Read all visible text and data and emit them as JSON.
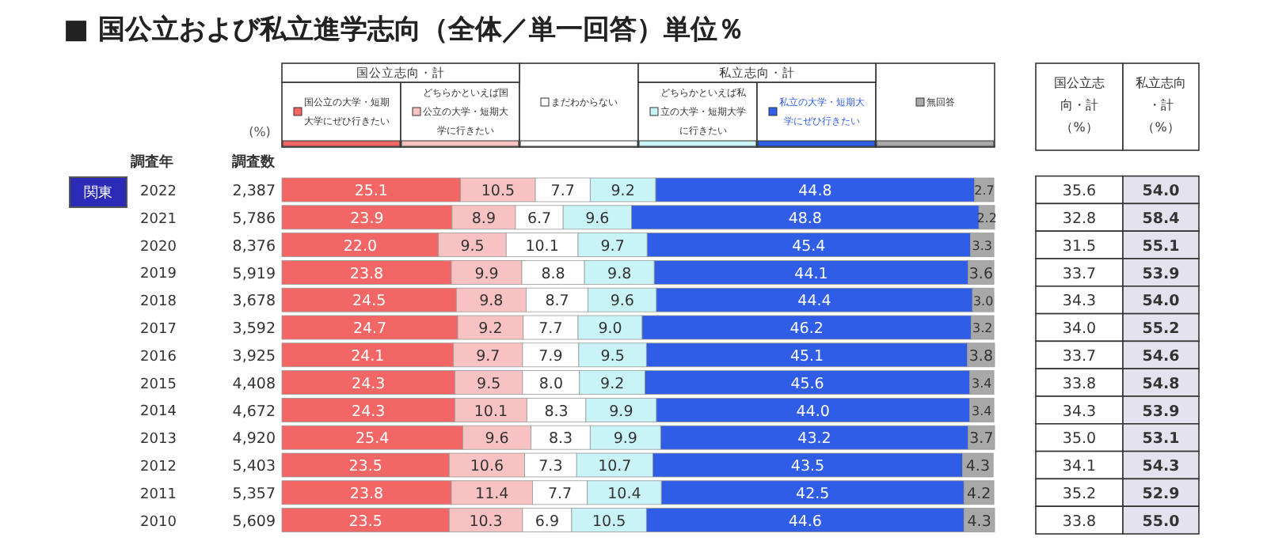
{
  "chart_data": [
    {
      "type": "bar",
      "orientation": "horizontal",
      "stacked": true,
      "data_labels": true,
      "legend": "top",
      "title": "■ 国公立および私立進学志向（全体／単一回答）単位％",
      "ylabel": "調査年",
      "categories": [
        "2022",
        "2021",
        "2020",
        "2019",
        "2018",
        "2017",
        "2016",
        "2015",
        "2014",
        "2013",
        "2012",
        "2011",
        "2010"
      ],
      "annotations": [
        "(%)",
        "関東",
        "国公立志向・計",
        "私立志向・計"
      ],
      "series": [
        {
          "name": "国公立の大学・短期大学にぜひ行きたい",
          "color": "#f26666",
          "values": [
            25.1,
            23.9,
            22.0,
            23.8,
            24.5,
            24.7,
            24.1,
            24.3,
            24.3,
            25.4,
            23.5,
            23.8,
            23.5
          ],
          "value_labels": [
            "25.1",
            "23.9",
            "22.0",
            "23.8",
            "24.5",
            "24.7",
            "24.1",
            "24.3",
            "24.3",
            "25.4",
            "23.5",
            "23.8",
            "23.5"
          ]
        },
        {
          "name": "どちらかといえば国公立の大学・短期大学に行きたい",
          "color": "#f8c2c2",
          "values": [
            10.5,
            8.9,
            9.5,
            9.9,
            9.8,
            9.2,
            9.7,
            9.5,
            10.1,
            9.6,
            10.6,
            11.4,
            10.3
          ],
          "value_labels": [
            "10.5",
            "8.9",
            "9.5",
            "9.9",
            "9.8",
            "9.2",
            "9.7",
            "9.5",
            "10.1",
            "9.6",
            "10.6",
            "11.4",
            "10.3"
          ]
        },
        {
          "name": "まだわからない",
          "color": "#ffffff",
          "values": [
            7.7,
            6.7,
            10.1,
            8.8,
            8.7,
            7.7,
            7.9,
            8.0,
            8.3,
            8.3,
            7.3,
            7.7,
            6.9
          ],
          "value_labels": [
            "7.7",
            "6.7",
            "10.1",
            "8.8",
            "8.7",
            "7.7",
            "7.9",
            "8.0",
            "8.3",
            "8.3",
            "7.3",
            "7.7",
            "6.9"
          ]
        },
        {
          "name": "どちらかといえば私立の大学・短期大学に行きたい",
          "color": "#c9f4f7",
          "values": [
            9.2,
            9.6,
            9.7,
            9.8,
            9.6,
            9.0,
            9.5,
            9.2,
            9.9,
            9.9,
            10.7,
            10.4,
            10.5
          ],
          "value_labels": [
            "9.2",
            "9.6",
            "9.7",
            "9.8",
            "9.6",
            "9.0",
            "9.5",
            "9.2",
            "9.9",
            "9.9",
            "10.7",
            "10.4",
            "10.5"
          ]
        },
        {
          "name": "私立の大学・短期大学にぜひ行きたい",
          "color": "#2f5de6",
          "values": [
            44.8,
            48.8,
            45.4,
            44.1,
            44.4,
            46.2,
            45.1,
            45.6,
            44.0,
            43.2,
            43.5,
            42.5,
            44.6
          ],
          "value_labels": [
            "44.8",
            "48.8",
            "45.4",
            "44.1",
            "44.4",
            "46.2",
            "45.1",
            "45.6",
            "44.0",
            "43.2",
            "43.5",
            "42.5",
            "44.6"
          ]
        },
        {
          "name": "無回答",
          "color": "#a8a8a8",
          "values": [
            2.7,
            2.2,
            3.3,
            3.6,
            3.0,
            3.2,
            3.8,
            3.4,
            3.4,
            3.7,
            4.3,
            4.2,
            4.3
          ],
          "value_labels": [
            "2.7",
            "2.2",
            "3.3",
            "3.6",
            "3.0",
            "3.2",
            "3.8",
            "3.4",
            "3.4",
            "3.7",
            "4.3",
            "4.2",
            "4.3"
          ]
        }
      ]
    },
    {
      "type": "other",
      "title": "調査数",
      "annotations": [
        "2,387",
        "5,786",
        "8,376",
        "5,919",
        "3,678",
        "3,592",
        "3,925",
        "4,408",
        "4,672",
        "4,920",
        "5,403",
        "5,357",
        "5,609"
      ]
    },
    {
      "type": "other",
      "annotations": [
        "国公立志向・計（%）",
        "私立志向・計（%）",
        "35.6",
        "54.0",
        "32.8",
        "58.4",
        "31.5",
        "55.1",
        "33.7",
        "53.9",
        "34.3",
        "54.0",
        "34.0",
        "55.2",
        "33.7",
        "54.6",
        "33.8",
        "54.8",
        "34.3",
        "53.9",
        "35.0",
        "53.1",
        "34.1",
        "54.3",
        "35.2",
        "52.9",
        "33.8",
        "55.0"
      ]
    }
  ]
}
